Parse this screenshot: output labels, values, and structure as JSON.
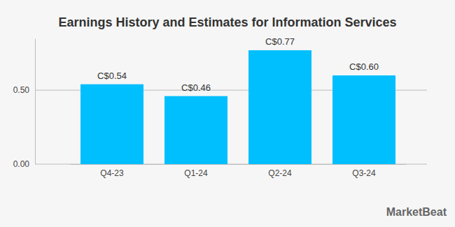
{
  "chart_data": {
    "type": "bar",
    "title": "Earnings History and Estimates for Information Services",
    "categories": [
      "Q4-23",
      "Q1-24",
      "Q2-24",
      "Q3-24"
    ],
    "values": [
      0.54,
      0.46,
      0.77,
      0.6
    ],
    "value_labels": [
      "C$0.54",
      "C$0.46",
      "C$0.77",
      "C$0.60"
    ],
    "color": "#00bfff",
    "ylim": [
      0,
      0.85
    ],
    "yticks": [
      {
        "value": 0,
        "label": "0.00"
      },
      {
        "value": 0.5,
        "label": "0.50"
      }
    ],
    "grid": true,
    "data_labels": true,
    "annotations": [
      "MarketBeat"
    ]
  }
}
